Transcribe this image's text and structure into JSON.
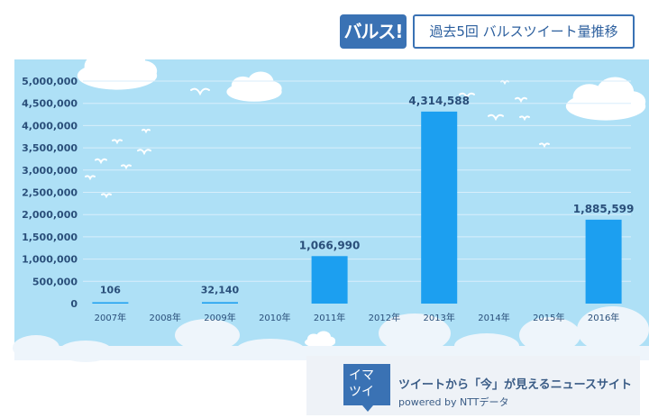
{
  "header": {
    "badge_label": "バルス!",
    "title": "過去5回 バルスツイート量推移"
  },
  "footer": {
    "logo_line1": "イマ",
    "logo_line2": "ツイ",
    "tagline": "ツイートから「今」が見えるニュースサイト",
    "powered": "powered by NTTデータ"
  },
  "colors": {
    "sky": "#aee0f6",
    "bar": "#1c9ff0",
    "grid": "#d8eefb",
    "tick_text": "#2a4f7a",
    "brand": "#3a72b4"
  },
  "chart_data": {
    "type": "bar",
    "title": "過去5回 バルスツイート量推移",
    "xlabel": "",
    "ylabel": "",
    "categories": [
      "2007年",
      "2008年",
      "2009年",
      "2010年",
      "2011年",
      "2012年",
      "2013年",
      "2014年",
      "2015年",
      "2016年"
    ],
    "values": [
      106,
      0,
      32140,
      0,
      1066990,
      0,
      4314588,
      0,
      0,
      1885599
    ],
    "data_labels": [
      "106",
      "",
      "32,140",
      "",
      "1,066,990",
      "",
      "4,314,588",
      "",
      "",
      "1,885,599"
    ],
    "yticks": [
      0,
      500000,
      1000000,
      1500000,
      2000000,
      2500000,
      3000000,
      3500000,
      4000000,
      4500000,
      5000000
    ],
    "ytick_labels": [
      "0",
      "500,000",
      "1,000,000",
      "1,500,000",
      "2,000,000",
      "2,500,000",
      "3,000,000",
      "3,500,000",
      "4,000,000",
      "4,500,000",
      "5,000,000"
    ],
    "ylim": [
      0,
      5000000
    ],
    "grid": true,
    "legend": "none"
  }
}
